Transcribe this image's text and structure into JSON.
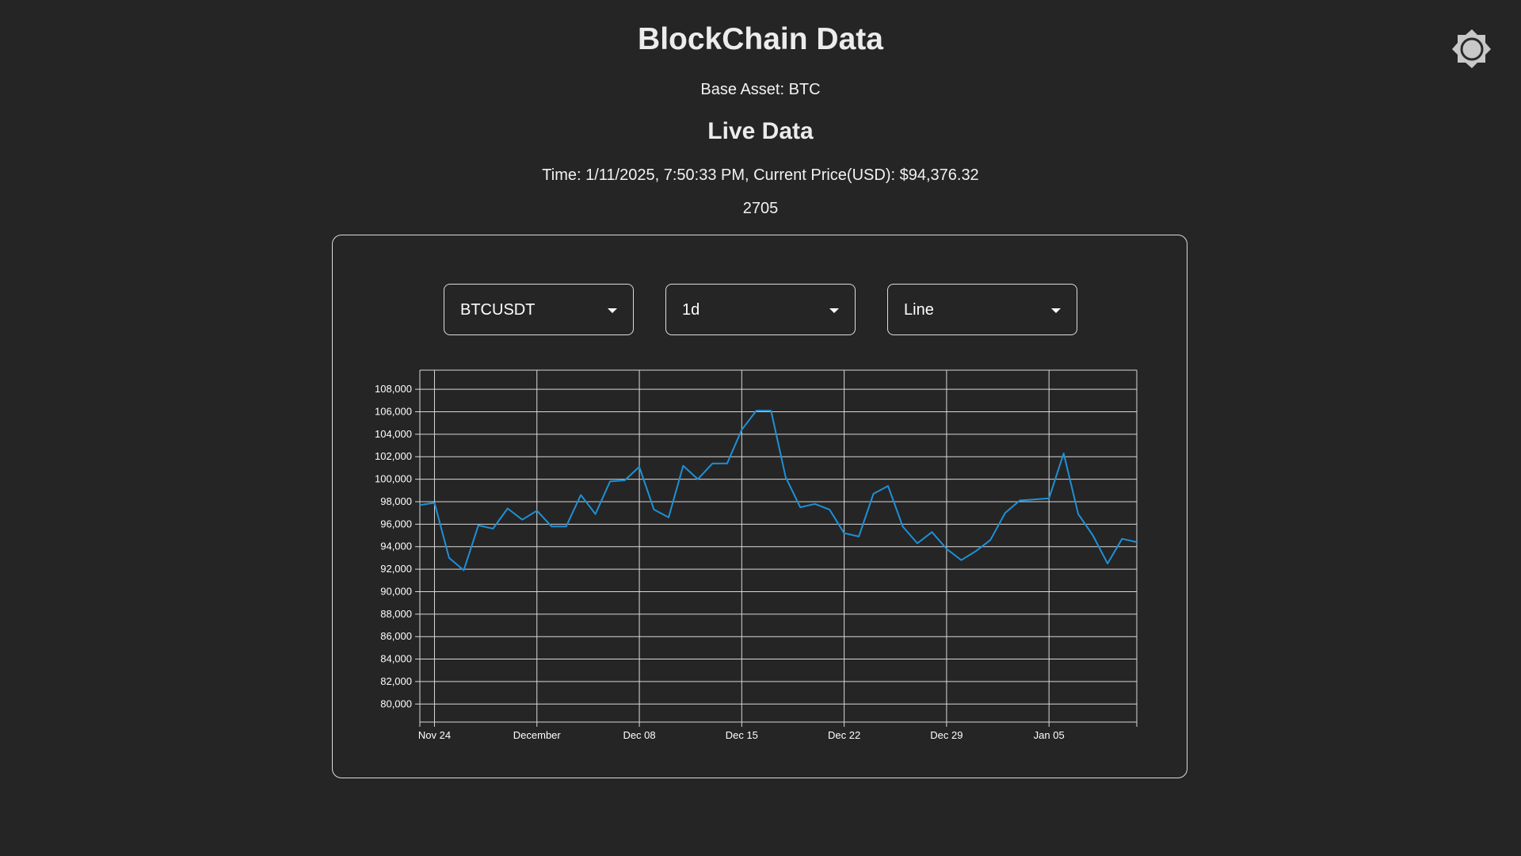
{
  "header": {
    "title": "BlockChain Data",
    "base_asset": "Base Asset: BTC",
    "section_title": "Live Data",
    "live_line": "Time: 1/11/2025, 7:50:33 PM, Current Price(USD): $94,376.32",
    "count": "2705",
    "theme_icon": "sun-brightness-icon"
  },
  "controls": {
    "symbol": "BTCUSDT",
    "interval": "1d",
    "chart_type": "Line"
  },
  "colors": {
    "background": "#252525",
    "line": "#1e90d6",
    "grid": "#d8d8d8",
    "text": "#ffffff"
  },
  "chart_data": {
    "type": "line",
    "title": "",
    "xlabel": "",
    "ylabel": "",
    "ylim": [
      78400,
      109700
    ],
    "yticks": [
      80000,
      82000,
      84000,
      86000,
      88000,
      90000,
      92000,
      94000,
      96000,
      98000,
      100000,
      102000,
      104000,
      106000,
      108000
    ],
    "ytick_labels": [
      "80,000",
      "82,000",
      "84,000",
      "86,000",
      "88,000",
      "90,000",
      "92,000",
      "94,000",
      "96,000",
      "98,000",
      "100,000",
      "102,000",
      "104,000",
      "106,000",
      "108,000"
    ],
    "xticks": [
      "2024-11-24",
      "2024-12-01",
      "2024-12-08",
      "2024-12-15",
      "2024-12-22",
      "2024-12-29",
      "2025-01-05"
    ],
    "xtick_labels": [
      "Nov 24",
      "December",
      "Dec 08",
      "Dec 15",
      "Dec 22",
      "Dec 29",
      "Jan 05"
    ],
    "xlim": [
      "2024-11-23",
      "2025-01-11"
    ],
    "grid": true,
    "legend": false,
    "series": [
      {
        "x": [
          "2024-11-23",
          "2024-11-24",
          "2024-11-25",
          "2024-11-26",
          "2024-11-27",
          "2024-11-28",
          "2024-11-29",
          "2024-11-30",
          "2024-12-01",
          "2024-12-02",
          "2024-12-03",
          "2024-12-04",
          "2024-12-05",
          "2024-12-06",
          "2024-12-07",
          "2024-12-08",
          "2024-12-09",
          "2024-12-10",
          "2024-12-11",
          "2024-12-12",
          "2024-12-13",
          "2024-12-14",
          "2024-12-15",
          "2024-12-16",
          "2024-12-17",
          "2024-12-18",
          "2024-12-19",
          "2024-12-20",
          "2024-12-21",
          "2024-12-22",
          "2024-12-23",
          "2024-12-24",
          "2024-12-25",
          "2024-12-26",
          "2024-12-27",
          "2024-12-28",
          "2024-12-29",
          "2024-12-30",
          "2024-12-31",
          "2025-01-01",
          "2025-01-02",
          "2025-01-03",
          "2025-01-04",
          "2025-01-05",
          "2025-01-06",
          "2025-01-07",
          "2025-01-08",
          "2025-01-09",
          "2025-01-10",
          "2025-01-11"
        ],
        "values": [
          97700,
          97900,
          93000,
          91900,
          95900,
          95600,
          97400,
          96400,
          97200,
          95800,
          95800,
          98600,
          96900,
          99800,
          99900,
          101100,
          97300,
          96600,
          101200,
          100000,
          101400,
          101400,
          104400,
          106100,
          106100,
          100200,
          97500,
          97800,
          97300,
          95200,
          94900,
          98700,
          99400,
          95800,
          94300,
          95300,
          93800,
          92800,
          93600,
          94600,
          97000,
          98100,
          98200,
          98300,
          102300,
          96900,
          95000,
          92500,
          94700,
          94400
        ]
      }
    ]
  }
}
